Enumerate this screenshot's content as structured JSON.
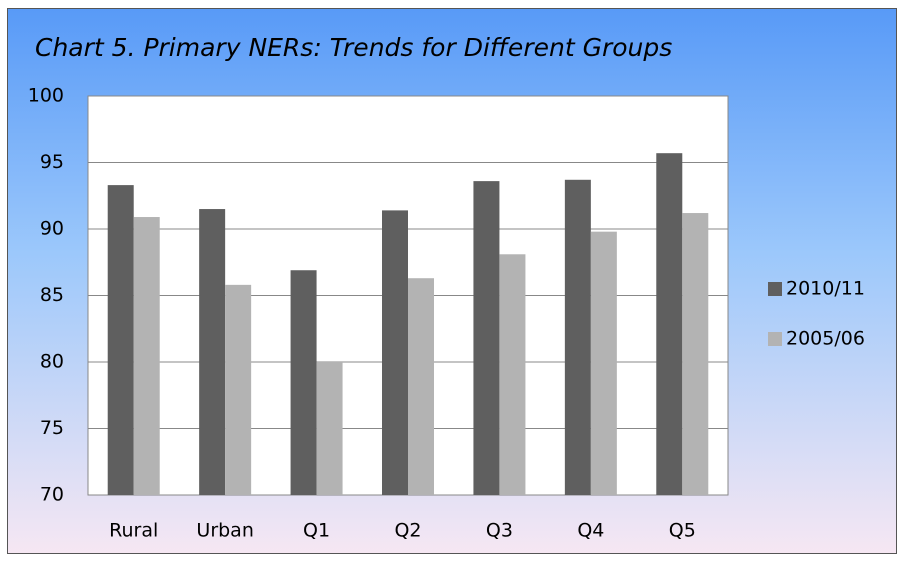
{
  "chart_data": {
    "type": "bar",
    "title": "Chart 5. Primary NERs: Trends for Different Groups",
    "categories": [
      "Rural",
      "Urban",
      "Q1",
      "Q2",
      "Q3",
      "Q4",
      "Q5"
    ],
    "series": [
      {
        "name": "2010/11",
        "color": "#5f5f5f",
        "values": [
          93.3,
          91.5,
          86.9,
          91.4,
          93.6,
          93.7,
          95.7
        ]
      },
      {
        "name": "2005/06",
        "color": "#b3b3b3",
        "values": [
          90.9,
          85.8,
          80.0,
          86.3,
          88.1,
          89.8,
          91.2
        ]
      }
    ],
    "ylim": [
      70,
      100
    ],
    "yticks": [
      70,
      75,
      80,
      85,
      90,
      95,
      100
    ],
    "grid": true,
    "legend": "right"
  }
}
